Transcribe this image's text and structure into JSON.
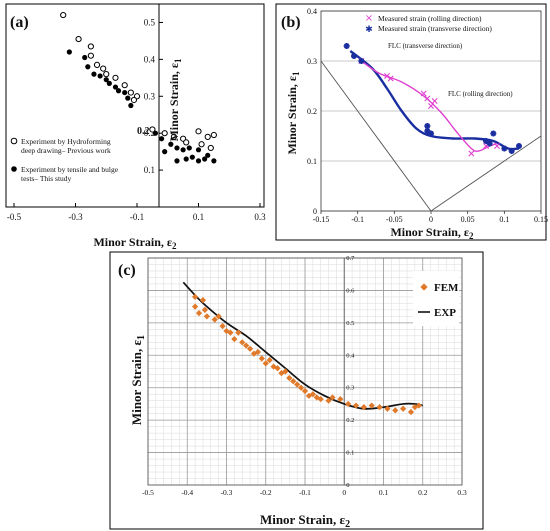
{
  "chart_data": [
    {
      "panel": "(a)",
      "type": "scatter",
      "xlabel": "Minor Strain, ε",
      "xlabel_sub": "2",
      "ylabel": "Minor Strain, ε",
      "ylabel_sub": "1",
      "xlim": [
        -0.5,
        0.3
      ],
      "ylim": [
        0,
        0.55
      ],
      "x_ticks": [
        "-0.5",
        "-0.3",
        "-0.1",
        "0.1",
        "0.3"
      ],
      "y_ticks": [
        "0.1",
        "0.2",
        "0.3",
        "0.4",
        "0.5"
      ],
      "annotation": "0.2",
      "series": [
        {
          "name": "Experiment by Hydroforming deep drawing– Previous work",
          "marker": "open-circle",
          "points": [
            [
              -0.34,
              0.52
            ],
            [
              -0.29,
              0.455
            ],
            [
              -0.25,
              0.435
            ],
            [
              -0.25,
              0.41
            ],
            [
              -0.23,
              0.385
            ],
            [
              -0.21,
              0.375
            ],
            [
              -0.2,
              0.36
            ],
            [
              -0.17,
              0.35
            ],
            [
              -0.14,
              0.33
            ],
            [
              -0.12,
              0.31
            ],
            [
              -0.1,
              0.3
            ],
            [
              -0.11,
              0.29
            ],
            [
              -0.05,
              0.21
            ],
            [
              -0.01,
              0.2
            ],
            [
              0.02,
              0.19
            ],
            [
              0.05,
              0.185
            ],
            [
              0.06,
              0.175
            ],
            [
              0.1,
              0.205
            ],
            [
              0.13,
              0.19
            ],
            [
              0.15,
              0.195
            ],
            [
              0.11,
              0.17
            ],
            [
              0.14,
              0.16
            ]
          ]
        },
        {
          "name": "Experiment by tensile and bulge tests– This study",
          "marker": "filled-circle",
          "points": [
            [
              -0.32,
              0.42
            ],
            [
              -0.27,
              0.405
            ],
            [
              -0.26,
              0.38
            ],
            [
              -0.24,
              0.36
            ],
            [
              -0.22,
              0.355
            ],
            [
              -0.2,
              0.345
            ],
            [
              -0.19,
              0.335
            ],
            [
              -0.17,
              0.325
            ],
            [
              -0.16,
              0.315
            ],
            [
              -0.14,
              0.31
            ],
            [
              -0.13,
              0.295
            ],
            [
              -0.12,
              0.275
            ],
            [
              -0.04,
              0.2
            ],
            [
              -0.02,
              0.185
            ],
            [
              0.01,
              0.17
            ],
            [
              -0.01,
              0.15
            ],
            [
              0.03,
              0.16
            ],
            [
              0.05,
              0.155
            ],
            [
              0.07,
              0.16
            ],
            [
              0.1,
              0.155
            ],
            [
              0.03,
              0.125
            ],
            [
              0.06,
              0.13
            ],
            [
              0.08,
              0.135
            ],
            [
              0.1,
              0.125
            ],
            [
              0.12,
              0.13
            ],
            [
              0.13,
              0.14
            ],
            [
              0.15,
              0.125
            ]
          ]
        }
      ]
    },
    {
      "panel": "(b)",
      "type": "line",
      "xlabel": "Minor Strain, ε",
      "xlabel_sub": "2",
      "ylabel": "Minor Strain, ε",
      "ylabel_sub": "1",
      "xlim": [
        -0.15,
        0.15
      ],
      "ylim": [
        0,
        0.4
      ],
      "x_ticks": [
        "-0.15",
        "-0.1",
        "-0.05",
        "0",
        "0.05",
        "0.1",
        "0.15"
      ],
      "y_ticks": [
        "0",
        "0.1",
        "0.2",
        "0.3",
        "0.4"
      ],
      "grid": true,
      "legend_position": "top",
      "annotations": [
        "FLC (transverse direction)",
        "FLC (rolling direction)"
      ],
      "series": [
        {
          "name": "Measured strain (rolling direction)",
          "marker": "x",
          "color": "#e040d0",
          "points": [
            [
              -0.095,
              0.3
            ],
            [
              -0.06,
              0.27
            ],
            [
              -0.055,
              0.265
            ],
            [
              -0.01,
              0.235
            ],
            [
              -0.005,
              0.225
            ],
            [
              0.0,
              0.21
            ],
            [
              0.005,
              0.22
            ],
            [
              0.055,
              0.115
            ],
            [
              0.075,
              0.13
            ],
            [
              0.09,
              0.13
            ]
          ]
        },
        {
          "name": "Measured strain (transverse direction)",
          "marker": "star",
          "color": "#1a2ea0",
          "points": [
            [
              -0.115,
              0.33
            ],
            [
              -0.105,
              0.31
            ],
            [
              -0.095,
              0.3
            ],
            [
              -0.005,
              0.17
            ],
            [
              -0.005,
              0.16
            ],
            [
              0.0,
              0.155
            ],
            [
              0.075,
              0.14
            ],
            [
              0.08,
              0.135
            ],
            [
              0.085,
              0.155
            ],
            [
              0.1,
              0.125
            ],
            [
              0.11,
              0.12
            ],
            [
              0.12,
              0.13
            ]
          ]
        },
        {
          "name": "FLC (transverse direction)",
          "style": "curve",
          "color": "#1a2ea0",
          "points": [
            [
              -0.11,
              0.32
            ],
            [
              -0.08,
              0.285
            ],
            [
              -0.06,
              0.245
            ],
            [
              -0.04,
              0.2
            ],
            [
              -0.02,
              0.165
            ],
            [
              0.0,
              0.15
            ],
            [
              0.03,
              0.145
            ],
            [
              0.06,
              0.145
            ],
            [
              0.085,
              0.14
            ],
            [
              0.105,
              0.125
            ],
            [
              0.12,
              0.125
            ]
          ]
        },
        {
          "name": "FLC (rolling direction)",
          "style": "curve",
          "color": "#e040d0",
          "points": [
            [
              -0.095,
              0.3
            ],
            [
              -0.07,
              0.275
            ],
            [
              -0.04,
              0.258
            ],
            [
              -0.01,
              0.23
            ],
            [
              0.015,
              0.195
            ],
            [
              0.035,
              0.158
            ],
            [
              0.055,
              0.125
            ],
            [
              0.065,
              0.12
            ],
            [
              0.08,
              0.13
            ],
            [
              0.09,
              0.135
            ]
          ]
        },
        {
          "name": "V reference lines",
          "style": "thin-line",
          "color": "#555555",
          "points": [
            [
              -0.15,
              0.3
            ],
            [
              0.0,
              0.0
            ],
            [
              0.15,
              0.15
            ]
          ]
        }
      ]
    },
    {
      "panel": "(c)",
      "type": "scatter",
      "xlabel": "Minor Strain, ε",
      "xlabel_sub": "2",
      "ylabel": "Minor Strain, ε",
      "ylabel_sub": "1",
      "xlim": [
        -0.5,
        0.3
      ],
      "ylim": [
        0,
        0.7
      ],
      "x_ticks": [
        "-0.5",
        "-0.4",
        "-0.3",
        "-0.2",
        "-0.1",
        "0",
        "0.1",
        "0.2",
        "0.3"
      ],
      "y_ticks": [
        "0",
        "0.1",
        "0.2",
        "0.3",
        "0.4",
        "0.5",
        "0.6",
        "0.7"
      ],
      "grid": true,
      "legend_position": "top-right",
      "series": [
        {
          "name": "FEM",
          "marker": "diamond",
          "color": "#e07a2a",
          "points": [
            [
              -0.38,
              0.58
            ],
            [
              -0.38,
              0.55
            ],
            [
              -0.37,
              0.53
            ],
            [
              -0.36,
              0.57
            ],
            [
              -0.355,
              0.54
            ],
            [
              -0.35,
              0.52
            ],
            [
              -0.33,
              0.51
            ],
            [
              -0.32,
              0.52
            ],
            [
              -0.31,
              0.49
            ],
            [
              -0.3,
              0.475
            ],
            [
              -0.29,
              0.47
            ],
            [
              -0.28,
              0.45
            ],
            [
              -0.27,
              0.47
            ],
            [
              -0.26,
              0.44
            ],
            [
              -0.25,
              0.43
            ],
            [
              -0.24,
              0.42
            ],
            [
              -0.23,
              0.405
            ],
            [
              -0.22,
              0.41
            ],
            [
              -0.21,
              0.39
            ],
            [
              -0.2,
              0.375
            ],
            [
              -0.19,
              0.385
            ],
            [
              -0.18,
              0.365
            ],
            [
              -0.17,
              0.36
            ],
            [
              -0.16,
              0.345
            ],
            [
              -0.15,
              0.35
            ],
            [
              -0.14,
              0.33
            ],
            [
              -0.13,
              0.32
            ],
            [
              -0.12,
              0.31
            ],
            [
              -0.11,
              0.3
            ],
            [
              -0.1,
              0.29
            ],
            [
              -0.09,
              0.275
            ],
            [
              -0.08,
              0.28
            ],
            [
              -0.07,
              0.27
            ],
            [
              -0.06,
              0.265
            ],
            [
              -0.04,
              0.26
            ],
            [
              -0.03,
              0.27
            ],
            [
              -0.01,
              0.265
            ],
            [
              0.01,
              0.25
            ],
            [
              0.03,
              0.245
            ],
            [
              0.05,
              0.24
            ],
            [
              0.07,
              0.245
            ],
            [
              0.09,
              0.24
            ],
            [
              0.11,
              0.235
            ],
            [
              0.13,
              0.23
            ],
            [
              0.15,
              0.235
            ],
            [
              0.17,
              0.225
            ],
            [
              0.18,
              0.24
            ],
            [
              0.19,
              0.245
            ]
          ]
        },
        {
          "name": "EXP",
          "style": "curve",
          "color": "#111111",
          "points": [
            [
              -0.41,
              0.625
            ],
            [
              -0.38,
              0.585
            ],
            [
              -0.35,
              0.55
            ],
            [
              -0.3,
              0.5
            ],
            [
              -0.25,
              0.46
            ],
            [
              -0.2,
              0.41
            ],
            [
              -0.15,
              0.36
            ],
            [
              -0.1,
              0.31
            ],
            [
              -0.05,
              0.275
            ],
            [
              0.0,
              0.25
            ],
            [
              0.05,
              0.235
            ],
            [
              0.1,
              0.24
            ],
            [
              0.15,
              0.25
            ],
            [
              0.18,
              0.25
            ],
            [
              0.2,
              0.245
            ]
          ]
        }
      ]
    }
  ],
  "panels": {
    "a": {
      "label": "(a)",
      "legend_open_line1": "Experiment by Hydroforming",
      "legend_open_line2": "deep drawing– Previous work",
      "legend_filled_line1": "Experiment by tensile and bulge",
      "legend_filled_line2": "tests– This study"
    },
    "b": {
      "label": "(b)",
      "legend_rolling": "Measured strain (rolling direction)",
      "legend_transverse": "Measured strain (transverse direction)",
      "flc_transverse_label": "FLC (transverse direction)",
      "flc_rolling_label": "FLC (rolling direction)"
    },
    "c": {
      "label": "(c)",
      "legend_fem": "FEM",
      "legend_exp": "EXP"
    }
  }
}
